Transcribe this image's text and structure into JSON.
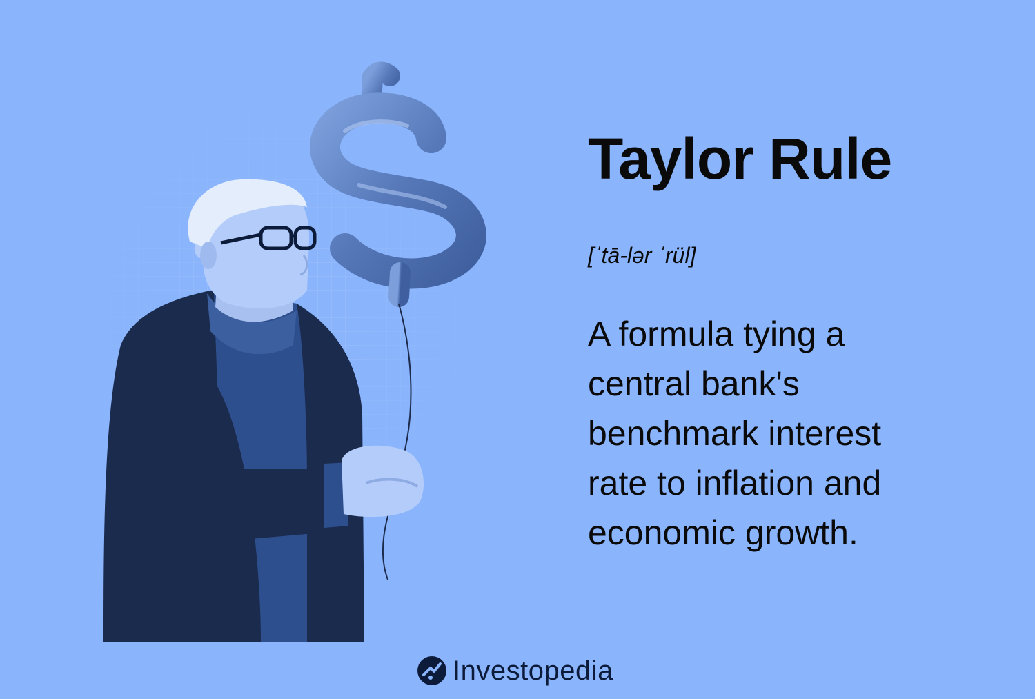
{
  "term": {
    "title": "Taylor Rule",
    "pronunciation": "[ˈtā-lər ˈrül]",
    "definition": "A formula tying a central bank's benchmark interest rate to inflation and economic growth."
  },
  "brand": {
    "name": "Investopedia",
    "icon": "investopedia-logo-icon"
  },
  "illustration": {
    "subject": "man-holding-dollar-balloon",
    "icon": "dollar-sign-balloon-icon"
  },
  "colors": {
    "background": "#8ab4fc",
    "text": "#0a0a0a",
    "jacket": "#1b2b4e",
    "shirt": "#2e4f8d",
    "skin": "#b4ccfa",
    "balloon": "#5a80c4"
  }
}
